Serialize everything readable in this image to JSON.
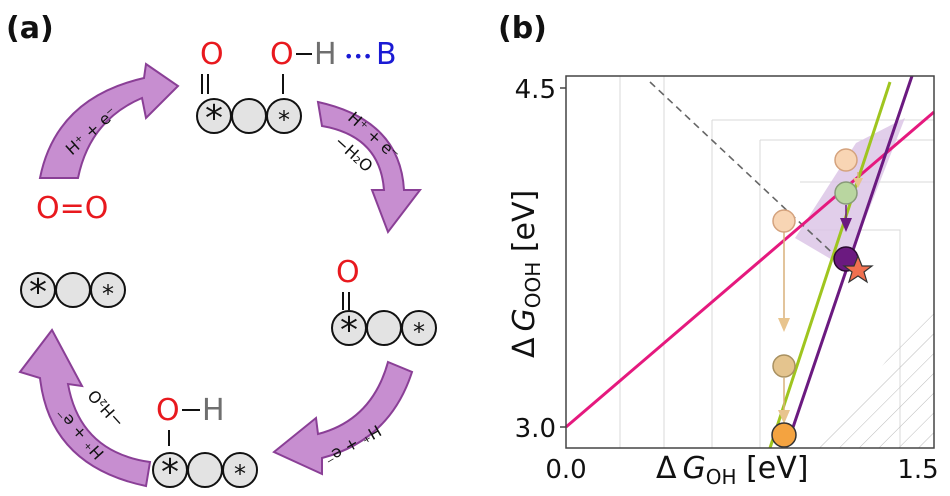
{
  "panel_a": {
    "label": "(a)",
    "intermediates": {
      "ooh": {
        "o1": "O",
        "o2": "O",
        "h": "H",
        "dots": "•••",
        "b": "B",
        "star1": "*",
        "star2": "*"
      },
      "o2": {
        "text": "O=O"
      },
      "bare": {
        "star1": "*",
        "star2": "*"
      },
      "o": {
        "o": "O",
        "star1": "*",
        "star2": "*"
      },
      "oh": {
        "o": "O",
        "h": "H",
        "star1": "*",
        "star2": "*"
      }
    },
    "arrows": [
      {
        "label": "H⁺ + e⁻"
      },
      {
        "label1": "H⁺ + e⁻",
        "label2": "−H₂O"
      },
      {
        "label": "H⁺ + e⁻"
      },
      {
        "label": "H⁺ + e⁻"
      },
      {
        "label1": "H⁺ + e⁻",
        "label2": "−H₂O"
      }
    ],
    "colors": {
      "oxygen": "#e8191e",
      "hydrogen": "#6f6f6f",
      "base": "#1a1ad4",
      "arrow_fill": "#c78ed0",
      "arrow_stroke": "#8a3f96",
      "sphere": "#e3e3e3"
    }
  },
  "panel_b": {
    "label": "(b)",
    "x_axis": {
      "delta": "Δ",
      "g": "G",
      "sub": "OH",
      "unit": " [eV]",
      "ticks": [
        "0.0",
        "1.5"
      ]
    },
    "y_axis": {
      "delta": "Δ",
      "g": "G",
      "sub": "OOH",
      "unit": " [eV]",
      "ticks": [
        "4.5",
        "3.0"
      ]
    },
    "colors": {
      "pink": "#e5197e",
      "green": "#9fc51f",
      "purple": "#6b1a80",
      "orange": "#f4a340",
      "star": "#f07050",
      "shade": "#dcc6e6"
    }
  },
  "chart_data": {
    "type": "scatter",
    "xlim": [
      0.0,
      1.5
    ],
    "ylim": [
      3.0,
      4.5
    ],
    "points": [
      {
        "x": 0.94,
        "y": 4.22,
        "color": "orange",
        "faded": true
      },
      {
        "x": 0.94,
        "y": 4.13,
        "color": "green",
        "faded": true
      },
      {
        "x": 0.94,
        "y": 3.79,
        "color": "purple",
        "faded": false
      },
      {
        "x": 0.75,
        "y": 4.02,
        "color": "orange",
        "faded": true
      },
      {
        "x": 0.75,
        "y": 3.23,
        "color": "orange",
        "faded": true
      },
      {
        "x": 0.75,
        "y": 2.99,
        "color": "orange",
        "faded": false
      }
    ],
    "star": {
      "x": 0.98,
      "y": 3.76
    }
  }
}
